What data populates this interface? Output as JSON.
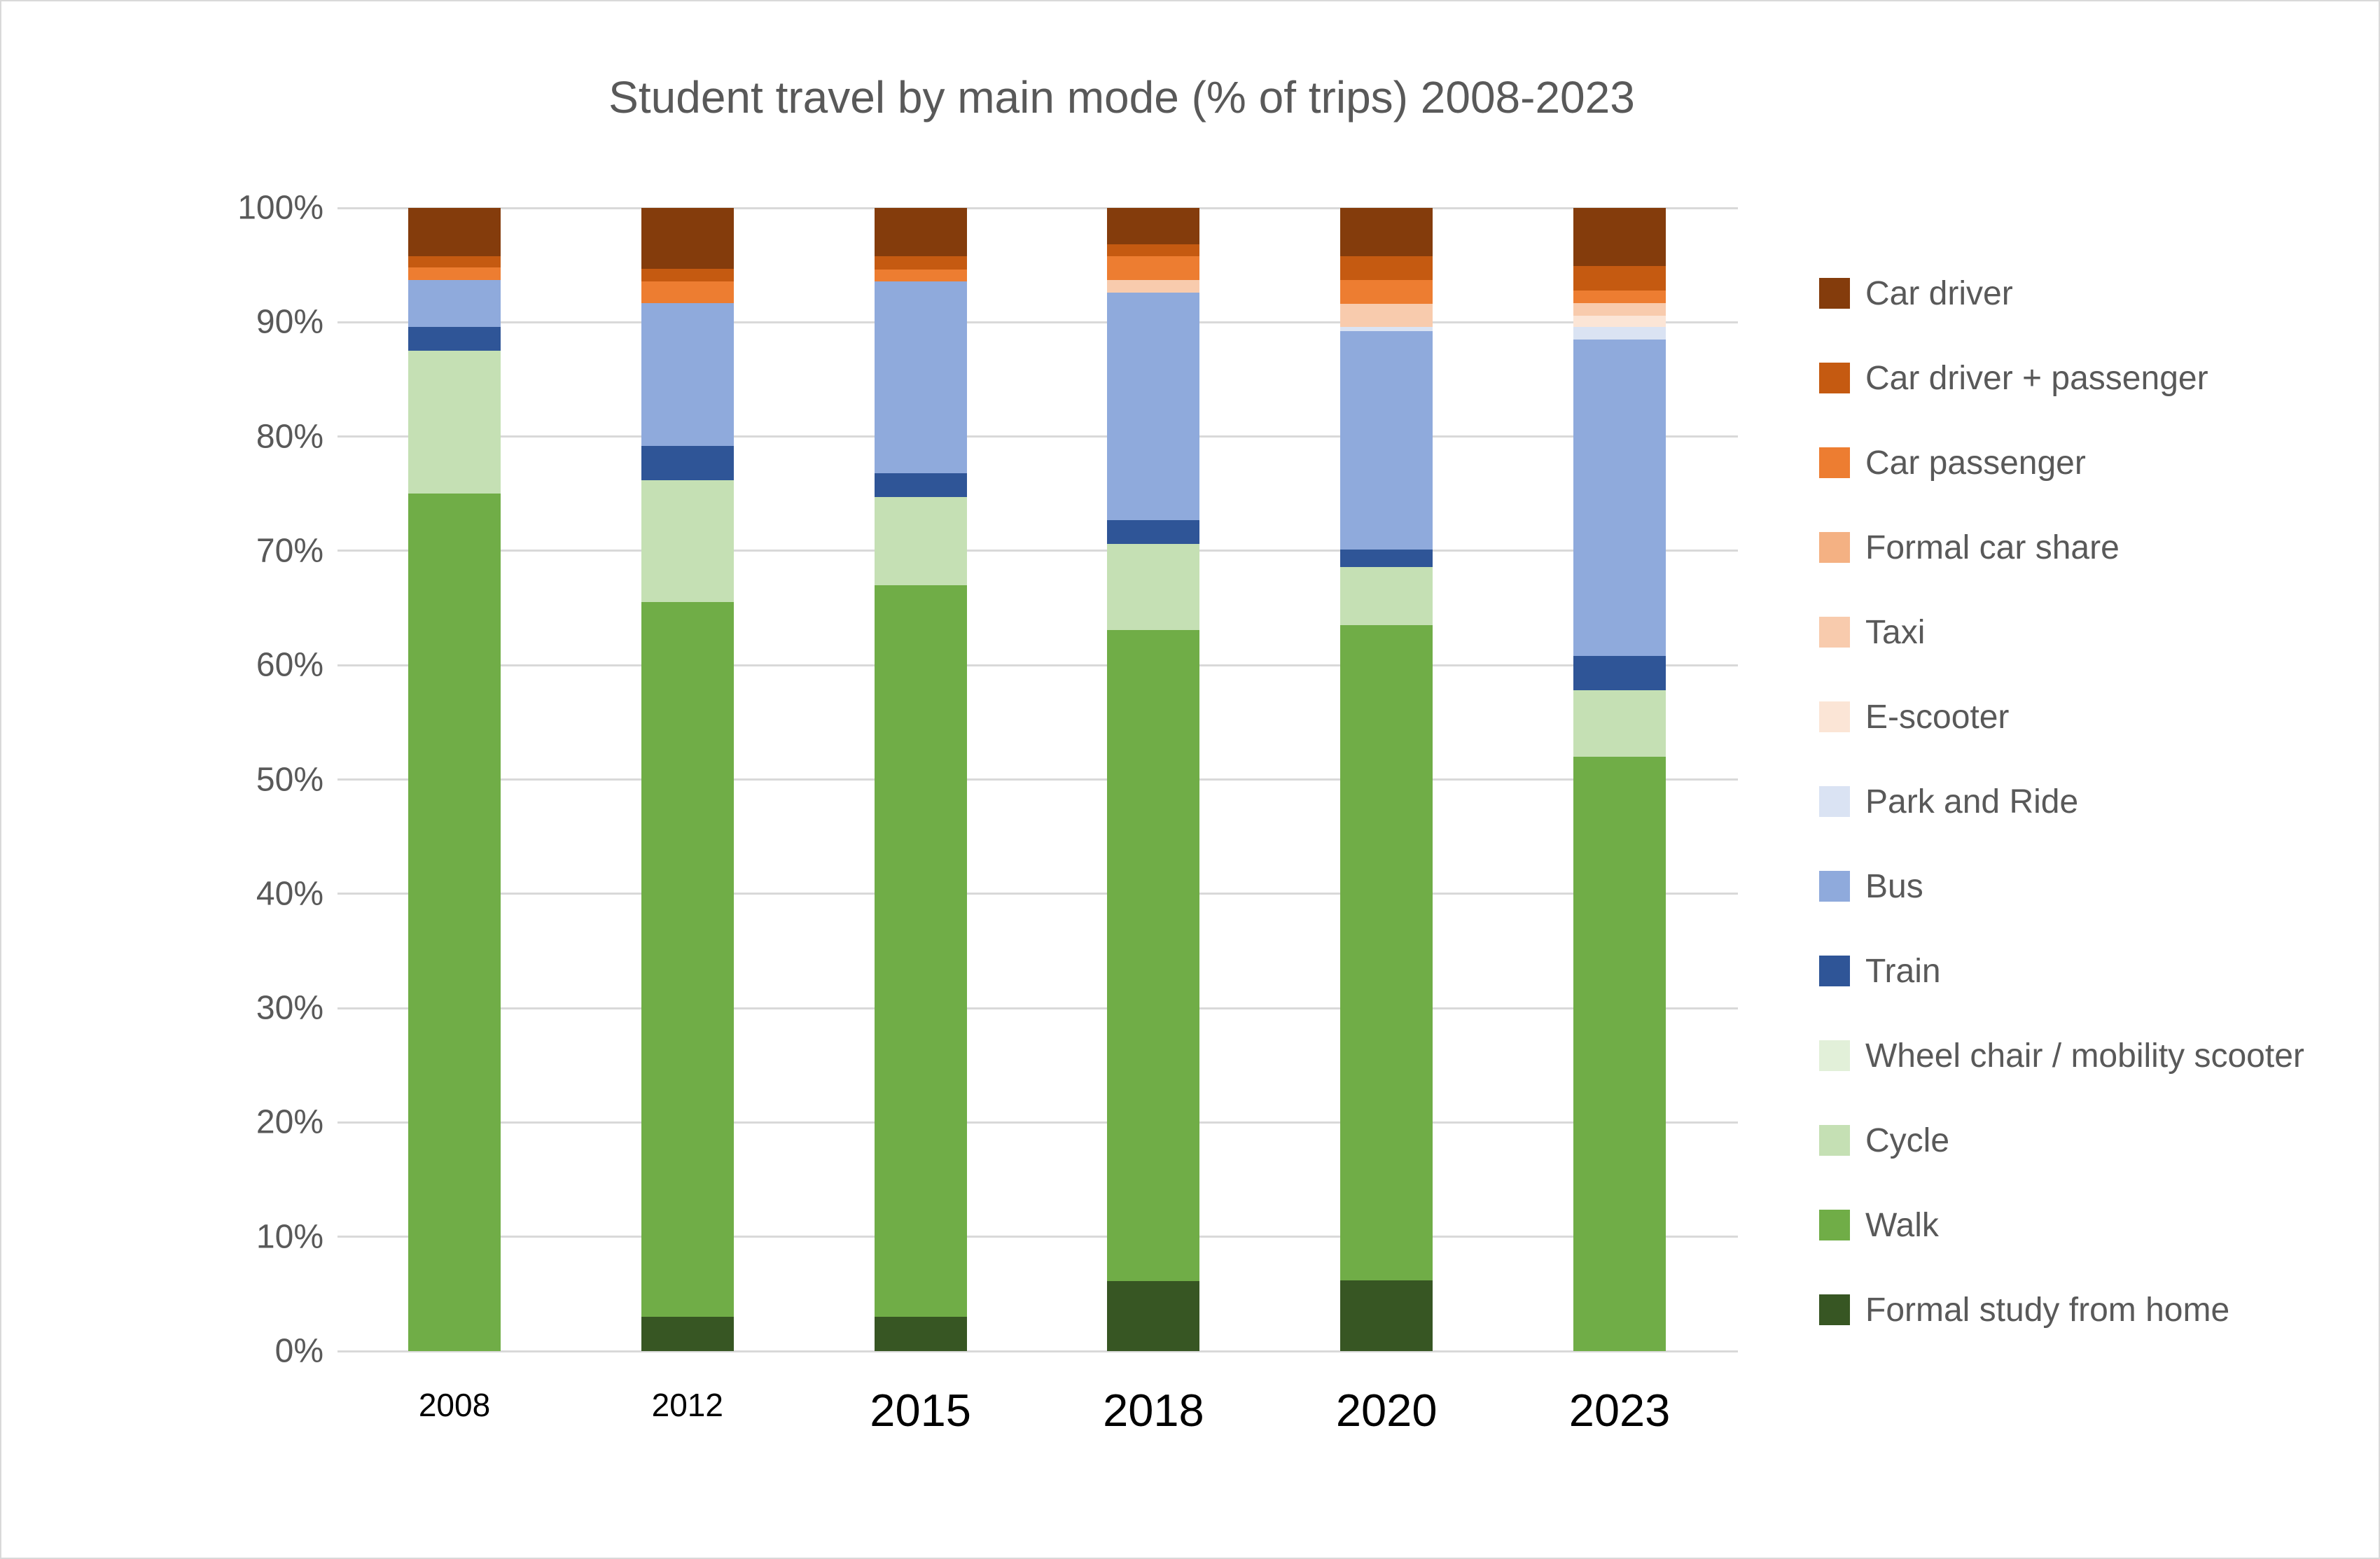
{
  "page": {
    "background": "#ffffff",
    "border_color": "#d9d9d9",
    "text_color_muted": "#595959",
    "gridline_color": "#d9d9d9"
  },
  "chart_data": {
    "type": "bar",
    "stacked": true,
    "grid": true,
    "legend_position": "right",
    "title": "Student travel by main mode (% of trips) 2008-2023",
    "xlabel": "",
    "ylabel": "",
    "ylim": [
      0,
      100
    ],
    "y_ticks": [
      "0%",
      "10%",
      "20%",
      "30%",
      "40%",
      "50%",
      "60%",
      "70%",
      "80%",
      "90%",
      "100%"
    ],
    "categories": [
      "2008",
      "2012",
      "2015",
      "2018",
      "2020",
      "2023"
    ],
    "series": [
      {
        "name": "Formal study from home",
        "color": "#375623",
        "values": [
          0,
          3.0,
          3.0,
          6.1,
          6.2,
          0
        ]
      },
      {
        "name": "Walk",
        "color": "#70AD47",
        "values": [
          75.0,
          62.5,
          64.0,
          57.0,
          57.3,
          52.0
        ]
      },
      {
        "name": "Cycle",
        "color": "#C5E0B4",
        "values": [
          12.5,
          10.7,
          7.7,
          7.5,
          5.1,
          5.8
        ]
      },
      {
        "name": "Wheel chair / mobility scooter",
        "color": "#E2F0D9",
        "values": [
          0,
          0,
          0,
          0,
          0,
          0
        ]
      },
      {
        "name": "Train",
        "color": "#2F5597",
        "values": [
          2.1,
          3.0,
          2.1,
          2.1,
          1.5,
          3.0
        ]
      },
      {
        "name": "Bus",
        "color": "#8FAADC",
        "values": [
          4.1,
          12.5,
          16.8,
          19.9,
          19.1,
          27.7
        ]
      },
      {
        "name": "Park and Ride",
        "color": "#DAE3F3",
        "values": [
          0,
          0,
          0,
          0,
          0.4,
          1.1
        ]
      },
      {
        "name": "E-scooter",
        "color": "#FBE5D6",
        "values": [
          0,
          0,
          0,
          0,
          0,
          1.0
        ]
      },
      {
        "name": "Taxi",
        "color": "#F8CBAD",
        "values": [
          0,
          0,
          0,
          1.1,
          2.0,
          1.1
        ]
      },
      {
        "name": "Formal car share",
        "color": "#F4B183",
        "values": [
          0,
          0,
          0,
          0,
          0,
          0
        ]
      },
      {
        "name": "Car passenger",
        "color": "#ED7D31",
        "values": [
          1.1,
          1.9,
          1.0,
          2.1,
          2.1,
          1.1
        ]
      },
      {
        "name": "Car driver + passenger",
        "color": "#C55A11",
        "values": [
          1.0,
          1.1,
          1.2,
          1.0,
          2.1,
          2.1
        ]
      },
      {
        "name": "Car driver",
        "color": "#843C0C",
        "values": [
          4.2,
          5.3,
          4.2,
          3.2,
          4.2,
          5.1
        ]
      }
    ]
  }
}
